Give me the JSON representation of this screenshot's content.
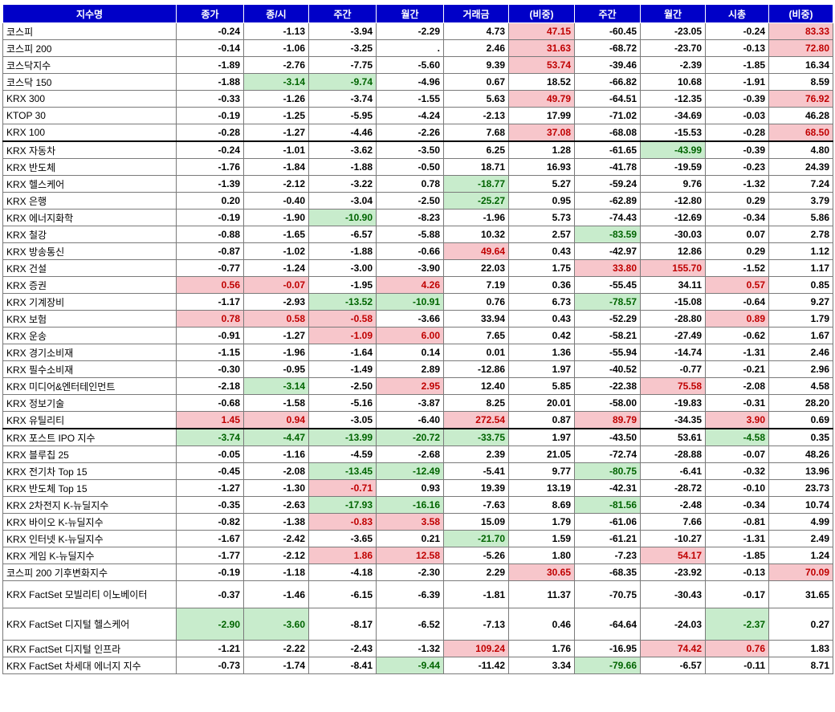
{
  "headers": [
    "지수명",
    "종가",
    "종/시",
    "주간",
    "월간",
    "거래금",
    "(비중)",
    "주간",
    "월간",
    "시총",
    "(비중)"
  ],
  "colors": {
    "header_bg": "#0000c8",
    "up_bg": "#f7c6cb",
    "up_text": "#c00000",
    "down_bg": "#c8eccc",
    "down_text": "#006400"
  },
  "rows": [
    {
      "name": "코스피",
      "values": [
        "-0.24",
        "-1.13",
        "-3.94",
        "-2.29",
        "4.73",
        "47.15",
        "-60.45",
        "-23.05",
        "-0.24",
        "83.33"
      ],
      "hl": [
        "",
        "",
        "",
        "",
        "",
        "r",
        "",
        "",
        "",
        "r"
      ]
    },
    {
      "name": "코스피 200",
      "values": [
        "-0.14",
        "-1.06",
        "-3.25",
        ".",
        "2.46",
        "31.63",
        "-68.72",
        "-23.70",
        "-0.13",
        "72.80"
      ],
      "hl": [
        "",
        "",
        "",
        "",
        "",
        "r",
        "",
        "",
        "",
        "r"
      ]
    },
    {
      "name": "코스닥지수",
      "values": [
        "-1.89",
        "-2.76",
        "-7.75",
        "-5.60",
        "9.39",
        "53.74",
        "-39.46",
        "-2.39",
        "-1.85",
        "16.34"
      ],
      "hl": [
        "",
        "",
        "",
        "",
        "",
        "r",
        "",
        "",
        "",
        ""
      ]
    },
    {
      "name": "코스닥 150",
      "values": [
        "-1.88",
        "-3.14",
        "-9.74",
        "-4.96",
        "0.67",
        "18.52",
        "-66.82",
        "10.68",
        "-1.91",
        "8.59"
      ],
      "hl": [
        "",
        "g",
        "g",
        "",
        "",
        "",
        "",
        "",
        "",
        ""
      ]
    },
    {
      "name": "KRX 300",
      "values": [
        "-0.33",
        "-1.26",
        "-3.74",
        "-1.55",
        "5.63",
        "49.79",
        "-64.51",
        "-12.35",
        "-0.39",
        "76.92"
      ],
      "hl": [
        "",
        "",
        "",
        "",
        "",
        "r",
        "",
        "",
        "",
        "r"
      ]
    },
    {
      "name": "KTOP 30",
      "values": [
        "-0.19",
        "-1.25",
        "-5.95",
        "-4.24",
        "-2.13",
        "17.99",
        "-71.02",
        "-34.69",
        "-0.03",
        "46.28"
      ],
      "hl": [
        "",
        "",
        "",
        "",
        "",
        "",
        "",
        "",
        "",
        ""
      ]
    },
    {
      "name": "KRX 100",
      "values": [
        "-0.28",
        "-1.27",
        "-4.46",
        "-2.26",
        "7.68",
        "37.08",
        "-68.08",
        "-15.53",
        "-0.28",
        "68.50"
      ],
      "hl": [
        "",
        "",
        "",
        "",
        "",
        "r",
        "",
        "",
        "",
        "r"
      ]
    },
    {
      "name": "KRX 자동차",
      "values": [
        "-0.24",
        "-1.01",
        "-3.62",
        "-3.50",
        "6.25",
        "1.28",
        "-61.65",
        "-43.99",
        "-0.39",
        "4.80"
      ],
      "hl": [
        "",
        "",
        "",
        "",
        "",
        "",
        "",
        "g",
        "",
        ""
      ],
      "sep": true
    },
    {
      "name": "KRX 반도체",
      "values": [
        "-1.76",
        "-1.84",
        "-1.88",
        "-0.50",
        "18.71",
        "16.93",
        "-41.78",
        "-19.59",
        "-0.23",
        "24.39"
      ],
      "hl": [
        "",
        "",
        "",
        "",
        "",
        "",
        "",
        "",
        "",
        ""
      ]
    },
    {
      "name": "KRX 헬스케어",
      "values": [
        "-1.39",
        "-2.12",
        "-3.22",
        "0.78",
        "-18.77",
        "5.27",
        "-59.24",
        "9.76",
        "-1.32",
        "7.24"
      ],
      "hl": [
        "",
        "",
        "",
        "",
        "g",
        "",
        "",
        "",
        "",
        ""
      ]
    },
    {
      "name": "KRX 은행",
      "values": [
        "0.20",
        "-0.40",
        "-3.04",
        "-2.50",
        "-25.27",
        "0.95",
        "-62.89",
        "-12.80",
        "0.29",
        "3.79"
      ],
      "hl": [
        "",
        "",
        "",
        "",
        "g",
        "",
        "",
        "",
        "",
        ""
      ]
    },
    {
      "name": "KRX 에너지화학",
      "values": [
        "-0.19",
        "-1.90",
        "-10.90",
        "-8.23",
        "-1.96",
        "5.73",
        "-74.43",
        "-12.69",
        "-0.34",
        "5.86"
      ],
      "hl": [
        "",
        "",
        "g",
        "",
        "",
        "",
        "",
        "",
        "",
        ""
      ]
    },
    {
      "name": "KRX 철강",
      "values": [
        "-0.88",
        "-1.65",
        "-6.57",
        "-5.88",
        "10.32",
        "2.57",
        "-83.59",
        "-30.03",
        "0.07",
        "2.78"
      ],
      "hl": [
        "",
        "",
        "",
        "",
        "",
        "",
        "g",
        "",
        "",
        ""
      ]
    },
    {
      "name": "KRX 방송통신",
      "values": [
        "-0.87",
        "-1.02",
        "-1.88",
        "-0.66",
        "49.64",
        "0.43",
        "-42.97",
        "12.86",
        "0.29",
        "1.12"
      ],
      "hl": [
        "",
        "",
        "",
        "",
        "r",
        "",
        "",
        "",
        "",
        ""
      ]
    },
    {
      "name": "KRX 건설",
      "values": [
        "-0.77",
        "-1.24",
        "-3.00",
        "-3.90",
        "22.03",
        "1.75",
        "33.80",
        "155.70",
        "-1.52",
        "1.17"
      ],
      "hl": [
        "",
        "",
        "",
        "",
        "",
        "",
        "r",
        "r",
        "",
        ""
      ]
    },
    {
      "name": "KRX 증권",
      "values": [
        "0.56",
        "-0.07",
        "-1.95",
        "4.26",
        "7.19",
        "0.36",
        "-55.45",
        "34.11",
        "0.57",
        "0.85"
      ],
      "hl": [
        "r",
        "r",
        "",
        "r",
        "",
        "",
        "",
        "",
        "r",
        ""
      ]
    },
    {
      "name": "KRX 기계장비",
      "values": [
        "-1.17",
        "-2.93",
        "-13.52",
        "-10.91",
        "0.76",
        "6.73",
        "-78.57",
        "-15.08",
        "-0.64",
        "9.27"
      ],
      "hl": [
        "",
        "",
        "g",
        "g",
        "",
        "",
        "g",
        "",
        "",
        ""
      ]
    },
    {
      "name": "KRX 보험",
      "values": [
        "0.78",
        "0.58",
        "-0.58",
        "-3.66",
        "33.94",
        "0.43",
        "-52.29",
        "-28.80",
        "0.89",
        "1.79"
      ],
      "hl": [
        "r",
        "r",
        "r",
        "",
        "",
        "",
        "",
        "",
        "r",
        ""
      ]
    },
    {
      "name": "KRX 운송",
      "values": [
        "-0.91",
        "-1.27",
        "-1.09",
        "6.00",
        "7.65",
        "0.42",
        "-58.21",
        "-27.49",
        "-0.62",
        "1.67"
      ],
      "hl": [
        "",
        "",
        "r",
        "r",
        "",
        "",
        "",
        "",
        "",
        ""
      ]
    },
    {
      "name": "KRX 경기소비재",
      "values": [
        "-1.15",
        "-1.96",
        "-1.64",
        "0.14",
        "0.01",
        "1.36",
        "-55.94",
        "-14.74",
        "-1.31",
        "2.46"
      ],
      "hl": [
        "",
        "",
        "",
        "",
        "",
        "",
        "",
        "",
        "",
        ""
      ]
    },
    {
      "name": "KRX 필수소비재",
      "values": [
        "-0.30",
        "-0.95",
        "-1.49",
        "2.89",
        "-12.86",
        "1.97",
        "-40.52",
        "-0.77",
        "-0.21",
        "2.96"
      ],
      "hl": [
        "",
        "",
        "",
        "",
        "",
        "",
        "",
        "",
        "",
        ""
      ]
    },
    {
      "name": "KRX 미디어&엔터테인먼트",
      "values": [
        "-2.18",
        "-3.14",
        "-2.50",
        "2.95",
        "12.40",
        "5.85",
        "-22.38",
        "75.58",
        "-2.08",
        "4.58"
      ],
      "hl": [
        "",
        "g",
        "",
        "r",
        "",
        "",
        "",
        "r",
        "",
        ""
      ]
    },
    {
      "name": "KRX 정보기술",
      "values": [
        "-0.68",
        "-1.58",
        "-5.16",
        "-3.87",
        "8.25",
        "20.01",
        "-58.00",
        "-19.83",
        "-0.31",
        "28.20"
      ],
      "hl": [
        "",
        "",
        "",
        "",
        "",
        "",
        "",
        "",
        "",
        ""
      ]
    },
    {
      "name": "KRX 유틸리티",
      "values": [
        "1.45",
        "0.94",
        "-3.05",
        "-6.40",
        "272.54",
        "0.87",
        "89.79",
        "-34.35",
        "3.90",
        "0.69"
      ],
      "hl": [
        "r",
        "r",
        "",
        "",
        "r",
        "",
        "r",
        "",
        "r",
        ""
      ]
    },
    {
      "name": "KRX 포스트 IPO 지수",
      "values": [
        "-3.74",
        "-4.47",
        "-13.99",
        "-20.72",
        "-33.75",
        "1.97",
        "-43.50",
        "53.61",
        "-4.58",
        "0.35"
      ],
      "hl": [
        "g",
        "g",
        "g",
        "g",
        "g",
        "",
        "",
        "",
        "g",
        ""
      ],
      "sep": true
    },
    {
      "name": "KRX 블루칩 25",
      "values": [
        "-0.05",
        "-1.16",
        "-4.59",
        "-2.68",
        "2.39",
        "21.05",
        "-72.74",
        "-28.88",
        "-0.07",
        "48.26"
      ],
      "hl": [
        "",
        "",
        "",
        "",
        "",
        "",
        "",
        "",
        "",
        ""
      ]
    },
    {
      "name": "KRX 전기차 Top 15",
      "values": [
        "-0.45",
        "-2.08",
        "-13.45",
        "-12.49",
        "-5.41",
        "9.77",
        "-80.75",
        "-6.41",
        "-0.32",
        "13.96"
      ],
      "hl": [
        "",
        "",
        "g",
        "g",
        "",
        "",
        "g",
        "",
        "",
        ""
      ]
    },
    {
      "name": "KRX 반도체 Top 15",
      "values": [
        "-1.27",
        "-1.30",
        "-0.71",
        "0.93",
        "19.39",
        "13.19",
        "-42.31",
        "-28.72",
        "-0.10",
        "23.73"
      ],
      "hl": [
        "",
        "",
        "r",
        "",
        "",
        "",
        "",
        "",
        "",
        ""
      ]
    },
    {
      "name": "KRX 2차전지 K-뉴딜지수",
      "values": [
        "-0.35",
        "-2.63",
        "-17.93",
        "-16.16",
        "-7.63",
        "8.69",
        "-81.56",
        "-2.48",
        "-0.34",
        "10.74"
      ],
      "hl": [
        "",
        "",
        "g",
        "g",
        "",
        "",
        "g",
        "",
        "",
        ""
      ]
    },
    {
      "name": "KRX 바이오 K-뉴딜지수",
      "values": [
        "-0.82",
        "-1.38",
        "-0.83",
        "3.58",
        "15.09",
        "1.79",
        "-61.06",
        "7.66",
        "-0.81",
        "4.99"
      ],
      "hl": [
        "",
        "",
        "r",
        "r",
        "",
        "",
        "",
        "",
        "",
        ""
      ]
    },
    {
      "name": "KRX 인터넷 K-뉴딜지수",
      "values": [
        "-1.67",
        "-2.42",
        "-3.65",
        "0.21",
        "-21.70",
        "1.59",
        "-61.21",
        "-10.27",
        "-1.31",
        "2.49"
      ],
      "hl": [
        "",
        "",
        "",
        "",
        "g",
        "",
        "",
        "",
        "",
        ""
      ]
    },
    {
      "name": "KRX 게임 K-뉴딜지수",
      "values": [
        "-1.77",
        "-2.12",
        "1.86",
        "12.58",
        "-5.26",
        "1.80",
        "-7.23",
        "54.17",
        "-1.85",
        "1.24"
      ],
      "hl": [
        "",
        "",
        "r",
        "r",
        "",
        "",
        "",
        "r",
        "",
        ""
      ]
    },
    {
      "name": "코스피 200 기후변화지수",
      "values": [
        "-0.19",
        "-1.18",
        "-4.18",
        "-2.30",
        "2.29",
        "30.65",
        "-68.35",
        "-23.92",
        "-0.13",
        "70.09"
      ],
      "hl": [
        "",
        "",
        "",
        "",
        "",
        "r",
        "",
        "",
        "",
        "r"
      ]
    },
    {
      "name": "KRX FactSet 모빌리티 이노베이터",
      "values": [
        "-0.37",
        "-1.46",
        "-6.15",
        "-6.39",
        "-1.81",
        "11.37",
        "-70.75",
        "-30.43",
        "-0.17",
        "31.65"
      ],
      "hl": [
        "",
        "",
        "",
        "",
        "",
        "",
        "",
        "",
        "",
        ""
      ],
      "tall": 1
    },
    {
      "name": "KRX FactSet 디지털 헬스케어",
      "values": [
        "-2.90",
        "-3.60",
        "-8.17",
        "-6.52",
        "-7.13",
        "0.46",
        "-64.64",
        "-24.03",
        "-2.37",
        "0.27"
      ],
      "hl": [
        "g",
        "g",
        "",
        "",
        "",
        "",
        "",
        "",
        "g",
        ""
      ],
      "tall": 2
    },
    {
      "name": "KRX FactSet 디지털 인프라",
      "values": [
        "-1.21",
        "-2.22",
        "-2.43",
        "-1.32",
        "109.24",
        "1.76",
        "-16.95",
        "74.42",
        "0.76",
        "1.83"
      ],
      "hl": [
        "",
        "",
        "",
        "",
        "r",
        "",
        "",
        "r",
        "r",
        ""
      ]
    },
    {
      "name": "KRX FactSet 차세대 에너지 지수",
      "values": [
        "-0.73",
        "-1.74",
        "-8.41",
        "-9.44",
        "-11.42",
        "3.34",
        "-79.66",
        "-6.57",
        "-0.11",
        "8.71"
      ],
      "hl": [
        "",
        "",
        "",
        "g",
        "",
        "",
        "g",
        "",
        "",
        ""
      ]
    }
  ]
}
